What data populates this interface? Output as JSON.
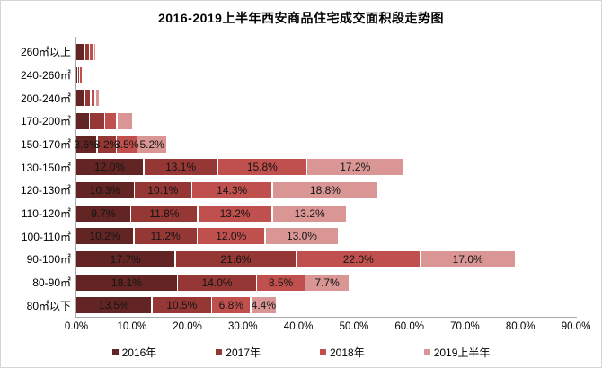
{
  "title": "2016-2019上半年西安商品住宅成交面积段走势图",
  "chart_data": {
    "type": "bar",
    "orientation": "horizontal-stacked",
    "title": "2016-2019上半年西安商品住宅成交面积段走势图",
    "xlabel": "",
    "ylabel": "",
    "xlim": [
      0,
      90
    ],
    "grid": false,
    "legend_position": "bottom",
    "x_ticks": [
      "0.0%",
      "10.0%",
      "20.0%",
      "30.0%",
      "40.0%",
      "50.0%",
      "60.0%",
      "70.0%",
      "80.0%",
      "90.0%"
    ],
    "series_names": [
      "2016年",
      "2017年",
      "2018年",
      "2019上半年"
    ],
    "series_colors": [
      "#632523",
      "#953735",
      "#C0504D",
      "#D99694"
    ],
    "rows": [
      {
        "category": "260㎡以上",
        "values": [
          1.4,
          0.6,
          0.5,
          0.2
        ],
        "labels": [
          "",
          "",
          "",
          ""
        ]
      },
      {
        "category": "240-260㎡",
        "values": [
          0.1,
          0.1,
          0.3,
          0.1
        ],
        "labels": [
          "",
          "",
          "",
          ""
        ]
      },
      {
        "category": "200-240㎡",
        "values": [
          1.3,
          0.9,
          0.6,
          0.5
        ],
        "labels": [
          "",
          "",
          "",
          ""
        ]
      },
      {
        "category": "170-200㎡",
        "values": [
          2.2,
          2.5,
          2.0,
          2.6
        ],
        "labels": [
          "",
          "",
          "",
          ""
        ]
      },
      {
        "category": "150-170㎡",
        "values": [
          3.6,
          3.2,
          3.5,
          5.2
        ],
        "labels": [
          "3.6%",
          "3.2%",
          "3.5%",
          "5.2%"
        ]
      },
      {
        "category": "130-150㎡",
        "values": [
          12.0,
          13.1,
          15.8,
          17.2
        ],
        "labels": [
          "12.0%",
          "13.1%",
          "15.8%",
          "17.2%"
        ]
      },
      {
        "category": "120-130㎡",
        "values": [
          10.3,
          10.1,
          14.3,
          18.8
        ],
        "labels": [
          "10.3%",
          "10.1%",
          "14.3%",
          "18.8%"
        ]
      },
      {
        "category": "110-120㎡",
        "values": [
          9.7,
          11.8,
          13.2,
          13.2
        ],
        "labels": [
          "9.7%",
          "11.8%",
          "13.2%",
          "13.2%"
        ]
      },
      {
        "category": "100-110㎡",
        "values": [
          10.2,
          11.2,
          12.0,
          13.0
        ],
        "labels": [
          "10.2%",
          "11.2%",
          "12.0%",
          "13.0%"
        ]
      },
      {
        "category": "90-100㎡",
        "values": [
          17.7,
          21.6,
          22.0,
          17.0
        ],
        "labels": [
          "17.7%",
          "21.6%",
          "22.0%",
          "17.0%"
        ]
      },
      {
        "category": "80-90㎡",
        "values": [
          18.1,
          14.0,
          8.5,
          7.7
        ],
        "labels": [
          "18.1%",
          "14.0%",
          "8.5%",
          "7.7%"
        ]
      },
      {
        "category": "80㎡以下",
        "values": [
          13.5,
          10.5,
          6.8,
          4.4
        ],
        "labels": [
          "13.5%",
          "10.5%",
          "6.8%",
          "4.4%"
        ]
      }
    ],
    "legend": [
      "2016年",
      "2017年",
      "2018年",
      "2019上半年"
    ]
  }
}
